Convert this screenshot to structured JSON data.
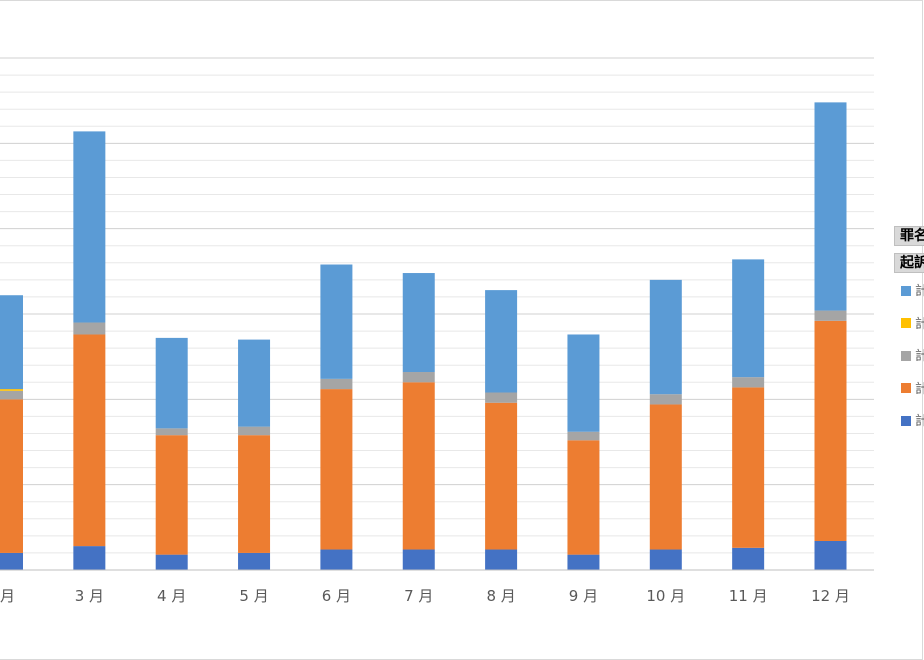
{
  "legend": {
    "header1": "罪名",
    "header2": "起訴",
    "items": [
      {
        "label": "計",
        "color": "#5b9bd5"
      },
      {
        "label": "計",
        "color": "#ffc000"
      },
      {
        "label": "計",
        "color": "#a5a5a5"
      },
      {
        "label": "計",
        "color": "#ed7d31"
      },
      {
        "label": "計",
        "color": "#4472c4"
      }
    ]
  },
  "chart_data": {
    "type": "bar",
    "stacked": true,
    "categories": [
      "月",
      "3 月",
      "4 月",
      "5 月",
      "6 月",
      "7 月",
      "8 月",
      "9 月",
      "10 月",
      "11 月",
      "12 月"
    ],
    "series": [
      {
        "color": "#4472c4",
        "values": [
          10,
          14,
          9,
          10,
          12,
          12,
          12,
          9,
          12,
          13,
          17
        ]
      },
      {
        "color": "#ed7d31",
        "values": [
          90,
          124,
          70,
          69,
          94,
          98,
          86,
          67,
          85,
          94,
          129
        ]
      },
      {
        "color": "#a5a5a5",
        "values": [
          5,
          7,
          4,
          5,
          6,
          6,
          6,
          5,
          6,
          6,
          6
        ]
      },
      {
        "color": "#ffc000",
        "values": [
          1,
          0,
          0,
          0,
          0,
          0,
          0,
          0,
          0,
          0,
          0
        ]
      },
      {
        "color": "#5b9bd5",
        "values": [
          55,
          112,
          53,
          51,
          67,
          58,
          60,
          57,
          67,
          69,
          122
        ]
      }
    ],
    "ylim": [
      0,
      300
    ],
    "grid": true,
    "legend_position": "right"
  }
}
